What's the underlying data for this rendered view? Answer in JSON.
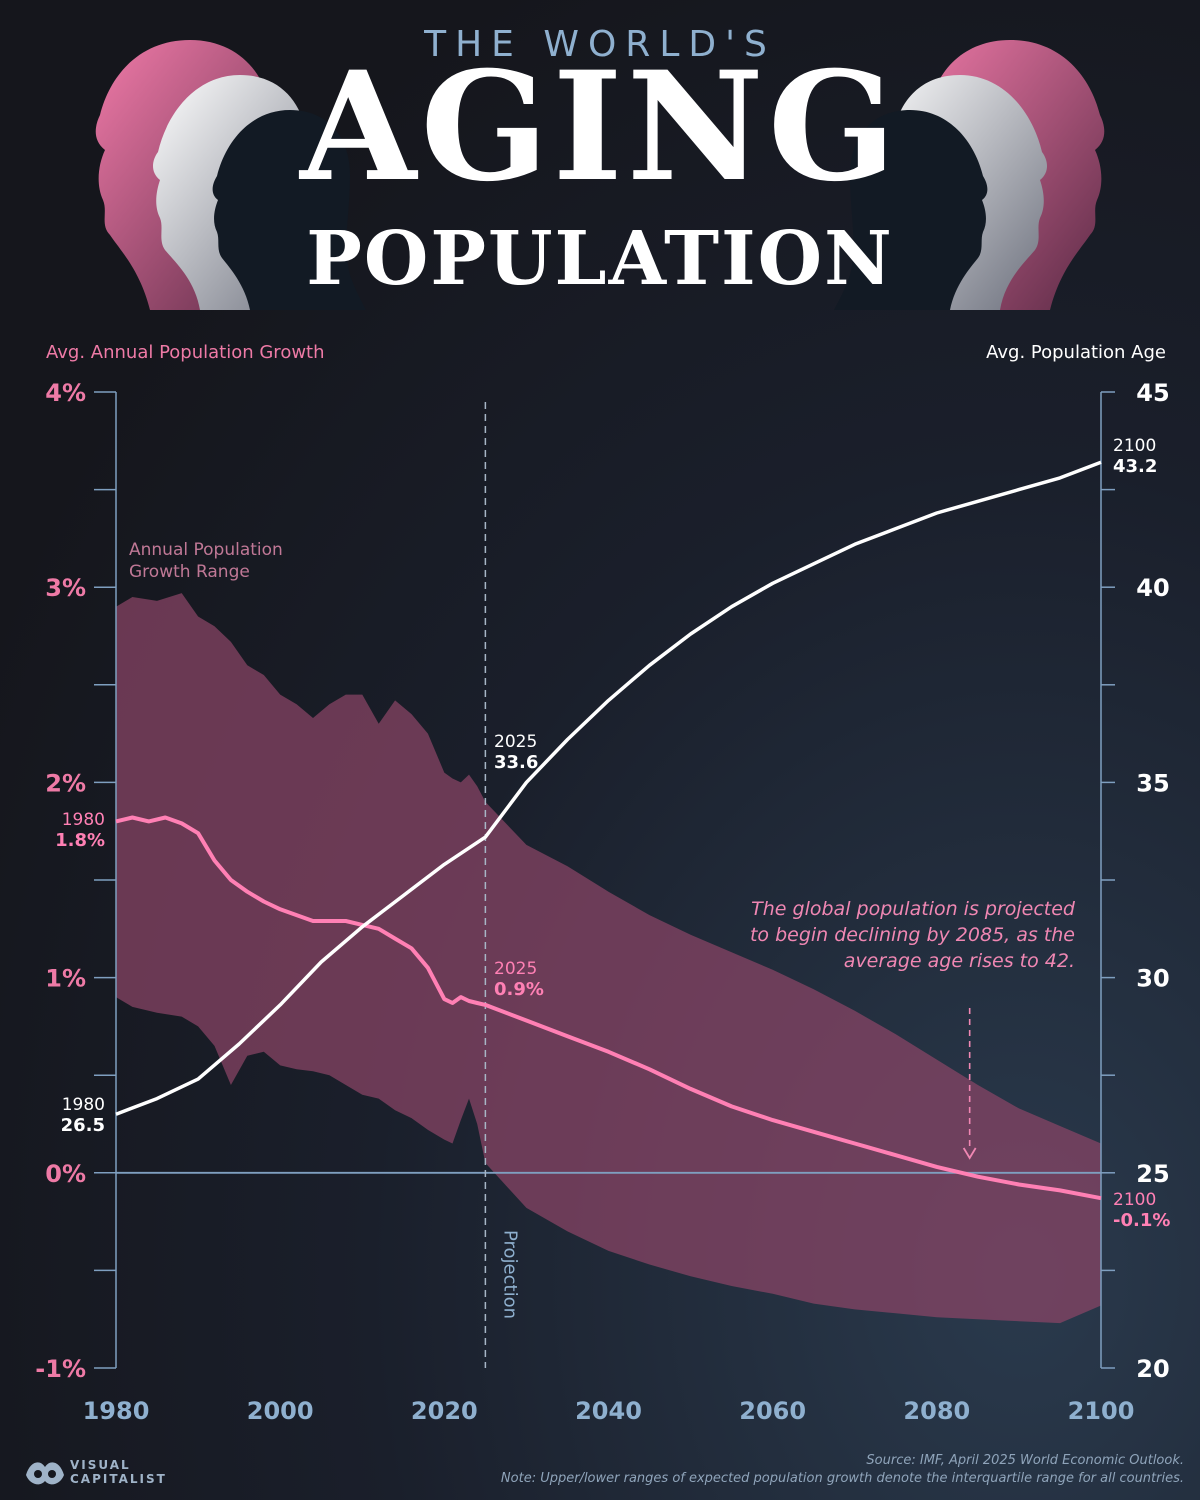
{
  "header": {
    "kicker": "THE WORLD'S",
    "title_main": "AGING",
    "title_sub": "POPULATION"
  },
  "chart_data": {
    "type": "line",
    "x_ticks": [
      "1980",
      "2000",
      "2020",
      "2040",
      "2060",
      "2080",
      "2100"
    ],
    "xlim": [
      1980,
      2100
    ],
    "left_axis": {
      "label": "Avg. Annual Population Growth",
      "ticks": [
        "4%",
        "3%",
        "2%",
        "1%",
        "0%",
        "-1%"
      ],
      "ylim": [
        -1,
        4
      ],
      "color": "#ee7aa6"
    },
    "right_axis": {
      "label": "Avg. Population Age",
      "ticks": [
        "45",
        "40",
        "35",
        "30",
        "25",
        "20"
      ],
      "ylim": [
        20,
        45
      ],
      "color": "#ffffff"
    },
    "projection_start": 2025,
    "projection_label": "Projection",
    "range_label_line1": "Annual Population",
    "range_label_line2": "Growth Range",
    "colors": {
      "growth": "#ff80b4",
      "band": "#8a4566",
      "age": "#ffffff",
      "axis": "#7f9fc0"
    },
    "growth_range": {
      "name": "Annual Population Growth Range",
      "x": [
        1980,
        1982,
        1985,
        1988,
        1990,
        1992,
        1994,
        1996,
        1998,
        2000,
        2002,
        2004,
        2006,
        2008,
        2010,
        2012,
        2014,
        2016,
        2018,
        2020,
        2021,
        2022,
        2023,
        2024,
        2025,
        2030,
        2035,
        2040,
        2045,
        2050,
        2055,
        2060,
        2065,
        2070,
        2075,
        2080,
        2085,
        2090,
        2095,
        2100
      ],
      "upper": [
        2.9,
        2.95,
        2.93,
        2.97,
        2.85,
        2.8,
        2.72,
        2.6,
        2.55,
        2.45,
        2.4,
        2.33,
        2.4,
        2.45,
        2.45,
        2.3,
        2.42,
        2.35,
        2.25,
        2.05,
        2.02,
        2.0,
        2.04,
        1.98,
        1.9,
        1.68,
        1.57,
        1.44,
        1.32,
        1.22,
        1.13,
        1.04,
        0.94,
        0.83,
        0.71,
        0.58,
        0.45,
        0.33,
        0.24,
        0.15
      ],
      "lower": [
        0.9,
        0.85,
        0.82,
        0.8,
        0.75,
        0.65,
        0.45,
        0.6,
        0.62,
        0.55,
        0.53,
        0.52,
        0.5,
        0.45,
        0.4,
        0.38,
        0.32,
        0.28,
        0.22,
        0.17,
        0.15,
        0.27,
        0.38,
        0.25,
        0.05,
        -0.18,
        -0.3,
        -0.4,
        -0.47,
        -0.53,
        -0.58,
        -0.62,
        -0.67,
        -0.7,
        -0.72,
        -0.74,
        -0.75,
        -0.76,
        -0.77,
        -0.68
      ]
    },
    "growth": {
      "name": "Avg. Annual Population Growth",
      "x": [
        1980,
        1982,
        1984,
        1986,
        1988,
        1990,
        1992,
        1994,
        1996,
        1998,
        2000,
        2002,
        2004,
        2006,
        2008,
        2010,
        2012,
        2014,
        2016,
        2018,
        2020,
        2021,
        2022,
        2023,
        2024,
        2025,
        2030,
        2035,
        2040,
        2045,
        2050,
        2055,
        2060,
        2065,
        2070,
        2075,
        2080,
        2085,
        2090,
        2095,
        2100
      ],
      "values": [
        1.8,
        1.82,
        1.8,
        1.82,
        1.79,
        1.74,
        1.6,
        1.5,
        1.44,
        1.39,
        1.35,
        1.32,
        1.29,
        1.29,
        1.29,
        1.27,
        1.25,
        1.2,
        1.15,
        1.05,
        0.89,
        0.87,
        0.9,
        0.88,
        0.87,
        0.86,
        0.78,
        0.7,
        0.62,
        0.53,
        0.43,
        0.34,
        0.27,
        0.21,
        0.15,
        0.09,
        0.03,
        -0.02,
        -0.06,
        -0.09,
        -0.13
      ]
    },
    "age": {
      "name": "Avg. Population Age",
      "x": [
        1980,
        1985,
        1990,
        1995,
        2000,
        2005,
        2010,
        2015,
        2020,
        2025,
        2030,
        2035,
        2040,
        2045,
        2050,
        2055,
        2060,
        2065,
        2070,
        2075,
        2080,
        2085,
        2090,
        2095,
        2100
      ],
      "values": [
        26.5,
        26.9,
        27.4,
        28.3,
        29.3,
        30.4,
        31.3,
        32.1,
        32.9,
        33.6,
        35.0,
        36.1,
        37.1,
        38.0,
        38.8,
        39.5,
        40.1,
        40.6,
        41.1,
        41.5,
        41.9,
        42.2,
        42.5,
        42.8,
        43.2
      ]
    },
    "annotations": [
      {
        "id": "age1980",
        "year": "1980",
        "value": "26.5"
      },
      {
        "id": "age2025",
        "year": "2025",
        "value": "33.6"
      },
      {
        "id": "age2100",
        "year": "2100",
        "value": "43.2"
      },
      {
        "id": "gr1980",
        "year": "1980",
        "value": "1.8%"
      },
      {
        "id": "gr2025",
        "year": "2025",
        "value": "0.9%"
      },
      {
        "id": "gr2100",
        "year": "2100",
        "value": "-0.1%"
      }
    ],
    "callout": [
      "The global population is projected",
      "to begin declining by 2085, as the",
      "average age rises to 42."
    ]
  },
  "footer": {
    "logo_line1": "VISUAL",
    "logo_line2": "CAPITALIST",
    "source": "Source: IMF, April 2025 World Economic Outlook.",
    "note": "Note: Upper/lower ranges of expected population growth denote the interquartile range for all countries."
  }
}
